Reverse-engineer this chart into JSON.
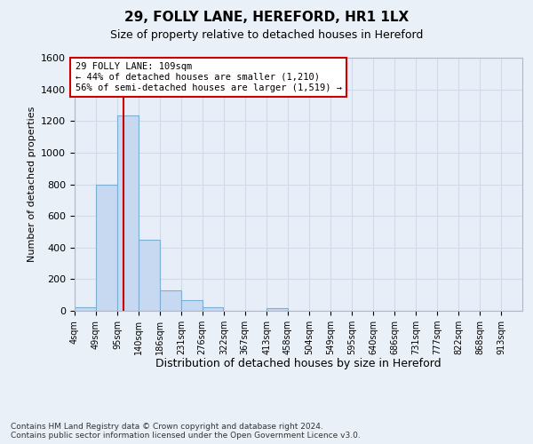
{
  "title_line1": "29, FOLLY LANE, HEREFORD, HR1 1LX",
  "title_line2": "Size of property relative to detached houses in Hereford",
  "xlabel": "Distribution of detached houses by size in Hereford",
  "ylabel": "Number of detached properties",
  "bin_labels": [
    "4sqm",
    "49sqm",
    "95sqm",
    "140sqm",
    "186sqm",
    "231sqm",
    "276sqm",
    "322sqm",
    "367sqm",
    "413sqm",
    "458sqm",
    "504sqm",
    "549sqm",
    "595sqm",
    "640sqm",
    "686sqm",
    "731sqm",
    "777sqm",
    "822sqm",
    "868sqm",
    "913sqm"
  ],
  "bin_edges": [
    4,
    49,
    95,
    140,
    186,
    231,
    276,
    322,
    367,
    413,
    458,
    504,
    549,
    595,
    640,
    686,
    731,
    777,
    822,
    868,
    913
  ],
  "bar_heights": [
    25,
    800,
    1235,
    450,
    130,
    65,
    25,
    0,
    0,
    15,
    0,
    0,
    0,
    0,
    0,
    0,
    0,
    0,
    0,
    0
  ],
  "bar_color": "#c6d9f0",
  "bar_edgecolor": "#7bafd4",
  "vline_x": 109,
  "vline_color": "#cc0000",
  "ylim": [
    0,
    1600
  ],
  "yticks": [
    0,
    200,
    400,
    600,
    800,
    1000,
    1200,
    1400,
    1600
  ],
  "annotation_text": "29 FOLLY LANE: 109sqm\n← 44% of detached houses are smaller (1,210)\n56% of semi-detached houses are larger (1,519) →",
  "annotation_box_color": "#cc0000",
  "footnote": "Contains HM Land Registry data © Crown copyright and database right 2024.\nContains public sector information licensed under the Open Government Licence v3.0.",
  "bg_color": "#eaf0f8",
  "plot_bg_color": "#e8eef8",
  "grid_color": "#d0dae8"
}
